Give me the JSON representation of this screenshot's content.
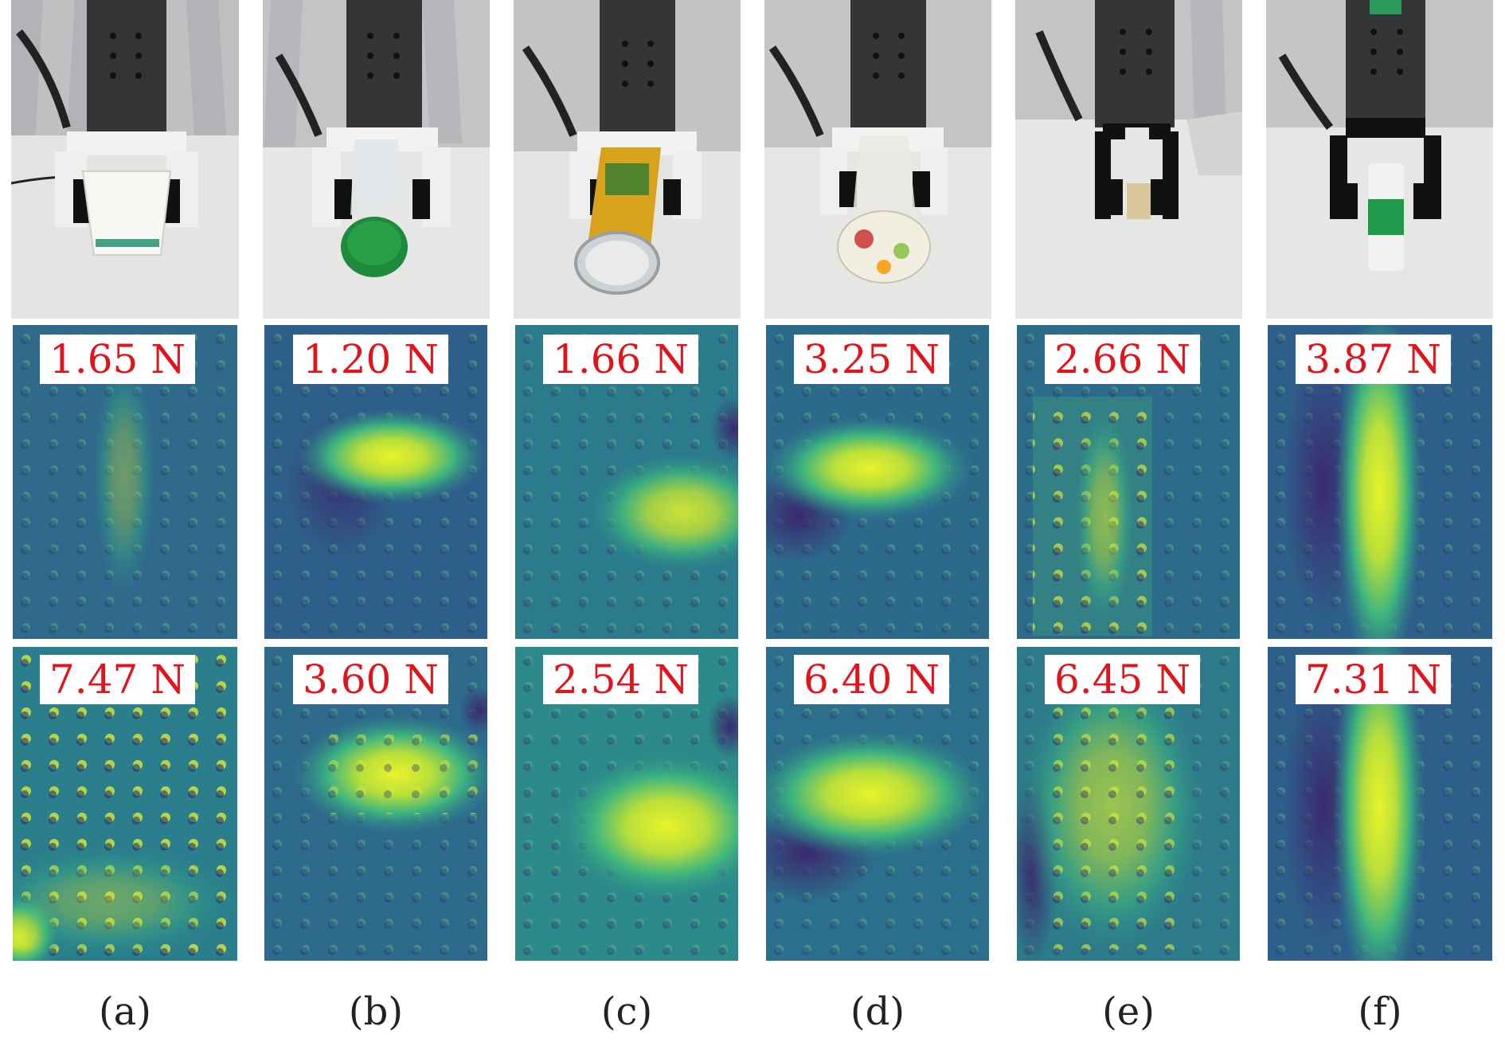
{
  "colors": {
    "label_text": "#e1141b",
    "label_bg": "#ffffff",
    "map_low": "#33467e",
    "map_mid": "#2a8a8a",
    "map_high": "#e9f32a"
  },
  "columns": [
    {
      "caption": "(a)",
      "object_icon": "paper-cup-icon",
      "object_color": "#f4f4f0",
      "object_accent": "#1a8c6b",
      "force_top": "1.65 N",
      "force_bottom": "7.47 N"
    },
    {
      "caption": "(b)",
      "object_icon": "plastic-bottle-icon",
      "object_color": "#dfe6ea",
      "object_accent": "#1e8a3c",
      "force_top": "1.20 N",
      "force_bottom": "3.60 N"
    },
    {
      "caption": "(c)",
      "object_icon": "soda-can-icon",
      "object_color": "#d9a21c",
      "object_accent": "#2e7d32",
      "force_top": "1.66 N",
      "force_bottom": "2.54 N"
    },
    {
      "caption": "(d)",
      "object_icon": "glass-jar-icon",
      "object_color": "#e9e9e4",
      "object_accent": "#c62828",
      "force_top": "3.25 N",
      "force_bottom": "6.40 N"
    },
    {
      "caption": "(e)",
      "object_icon": "tape-roll-icon",
      "object_color": "#d8c79a",
      "object_accent": "#8c7a4a",
      "force_top": "2.66 N",
      "force_bottom": "6.45 N"
    },
    {
      "caption": "(f)",
      "object_icon": "glue-stick-icon",
      "object_color": "#f1f3f0",
      "object_accent": "#1e9a4a",
      "force_top": "3.87 N",
      "force_bottom": "7.31 N"
    }
  ]
}
